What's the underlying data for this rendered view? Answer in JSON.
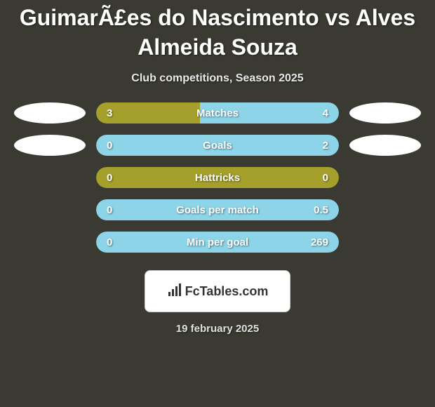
{
  "title": "GuimarÃ£es do Nascimento vs Alves Almeida Souza",
  "subtitle": "Club competitions, Season 2025",
  "colors": {
    "background": "#3a3a32",
    "left_bar": "#a5a02c",
    "right_bar": "#8dd4e8",
    "ellipse": "#ffffff",
    "text": "#ffffff"
  },
  "stats": [
    {
      "label": "Matches",
      "left_value": "3",
      "right_value": "4",
      "left_width_pct": 42.9,
      "right_width_pct": 57.1,
      "show_ellipses": true
    },
    {
      "label": "Goals",
      "left_value": "0",
      "right_value": "2",
      "left_width_pct": 0,
      "right_width_pct": 100,
      "show_ellipses": true
    },
    {
      "label": "Hattricks",
      "left_value": "0",
      "right_value": "0",
      "left_width_pct": 100,
      "right_width_pct": 0,
      "show_ellipses": false
    },
    {
      "label": "Goals per match",
      "left_value": "0",
      "right_value": "0.5",
      "left_width_pct": 0,
      "right_width_pct": 100,
      "show_ellipses": false
    },
    {
      "label": "Min per goal",
      "left_value": "0",
      "right_value": "269",
      "left_width_pct": 0,
      "right_width_pct": 100,
      "show_ellipses": false
    }
  ],
  "logo": {
    "text": "FcTables.com"
  },
  "date": "19 february 2025"
}
